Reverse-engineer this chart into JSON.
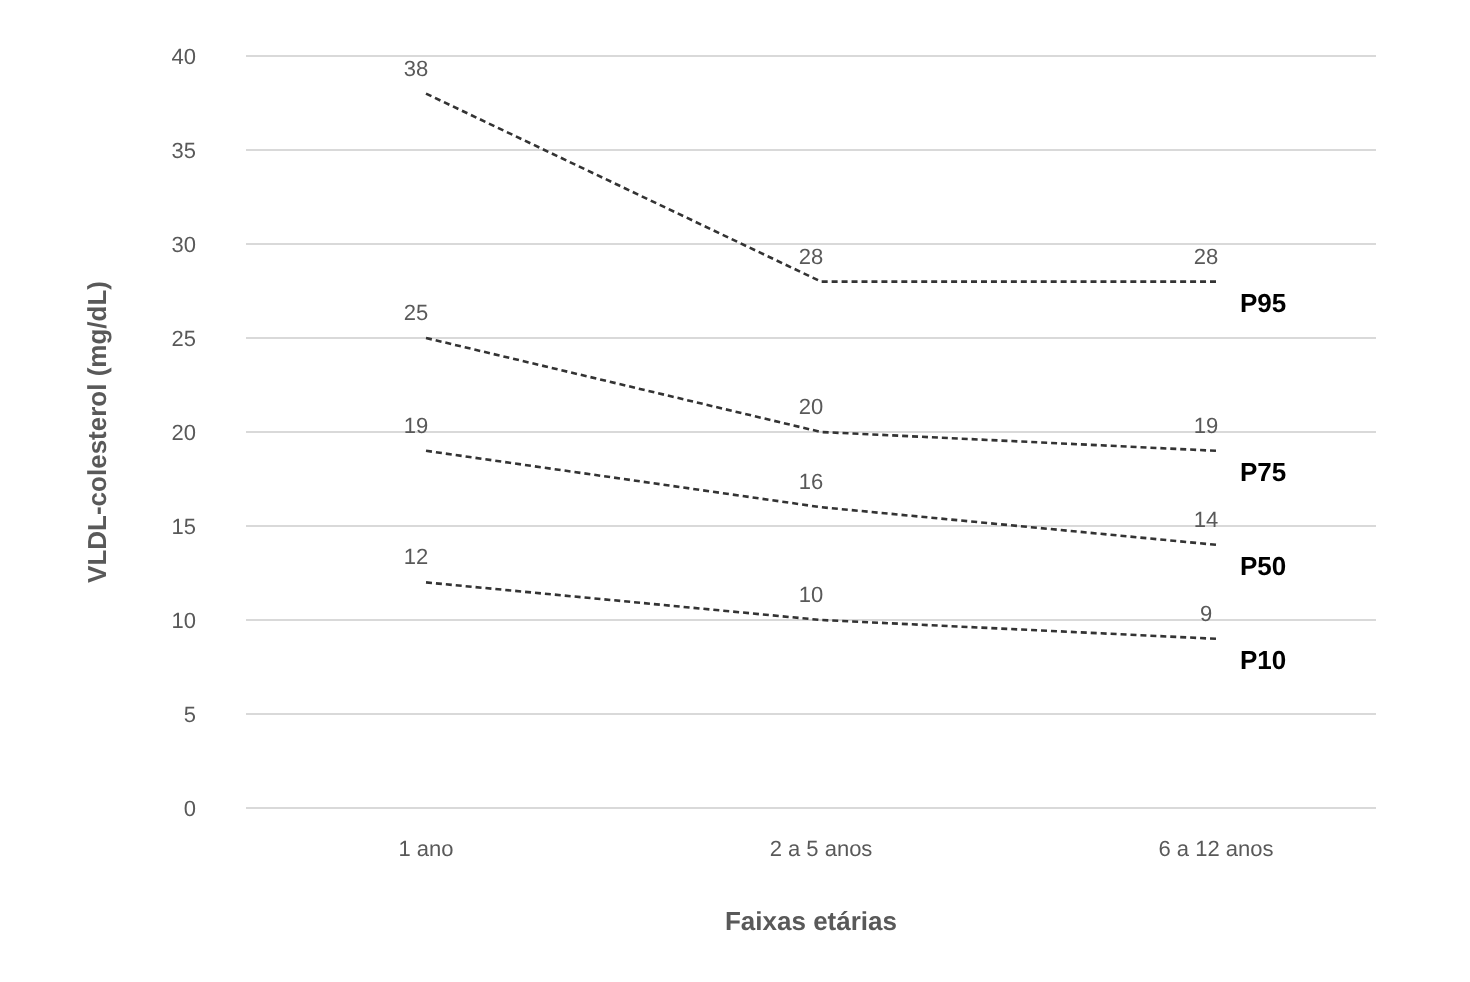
{
  "chart_data": {
    "type": "line",
    "xlabel": "Faixas etárias",
    "ylabel": "VLDL-colesterol (mg/dL)",
    "categories": [
      "1 ano",
      "2 a 5 anos",
      "6 a 12 anos"
    ],
    "ylim": [
      0,
      40
    ],
    "yticks": [
      0,
      5,
      10,
      15,
      20,
      25,
      30,
      35,
      40
    ],
    "grid": "y",
    "data_labels": true,
    "line_style": "dashed",
    "marker": "none",
    "series": [
      {
        "name": "P95",
        "color": "#333333",
        "values": [
          38,
          28,
          28
        ]
      },
      {
        "name": "P75",
        "color": "#333333",
        "values": [
          25,
          20,
          19
        ]
      },
      {
        "name": "P50",
        "color": "#333333",
        "values": [
          19,
          16,
          14
        ]
      },
      {
        "name": "P10",
        "color": "#333333",
        "values": [
          12,
          10,
          9
        ]
      }
    ]
  }
}
